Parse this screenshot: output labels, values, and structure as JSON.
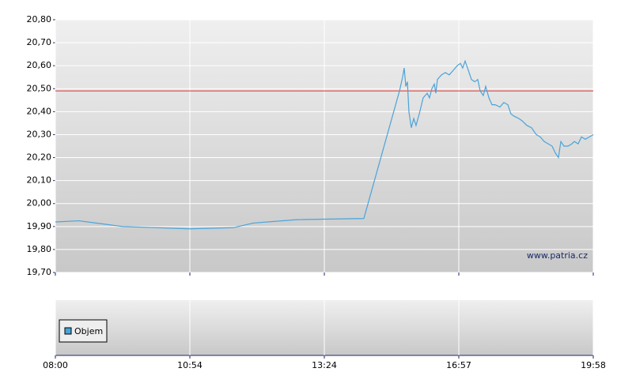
{
  "chart_data": {
    "type": "line",
    "xlim": [
      0,
      4
    ],
    "xticks": [
      {
        "value": 0,
        "label": "08:00"
      },
      {
        "value": 1,
        "label": "10:54"
      },
      {
        "value": 2,
        "label": "13:24"
      },
      {
        "value": 3,
        "label": "16:57"
      },
      {
        "value": 4,
        "label": "19:58"
      }
    ],
    "ylim": [
      19.7,
      20.8
    ],
    "yticks": [
      {
        "value": 19.7,
        "label": "19,70"
      },
      {
        "value": 19.8,
        "label": "19,80"
      },
      {
        "value": 19.9,
        "label": "19,90"
      },
      {
        "value": 20.0,
        "label": "20,00"
      },
      {
        "value": 20.1,
        "label": "20,10"
      },
      {
        "value": 20.2,
        "label": "20,20"
      },
      {
        "value": 20.3,
        "label": "20,30"
      },
      {
        "value": 20.4,
        "label": "20,40"
      },
      {
        "value": 20.5,
        "label": "20,50"
      },
      {
        "value": 20.6,
        "label": "20,60"
      },
      {
        "value": 20.7,
        "label": "20,70"
      },
      {
        "value": 20.8,
        "label": "20,80"
      }
    ],
    "grid": true,
    "reference_line": {
      "value": 20.49,
      "color": "#e03030"
    },
    "watermark": "www.patria.cz",
    "x": [
      0,
      0.176,
      0.5,
      1,
      1.324,
      1.471,
      1.794,
      2.294,
      2.559,
      2.582,
      2.594,
      2.606,
      2.618,
      2.629,
      2.647,
      2.665,
      2.682,
      2.706,
      2.735,
      2.765,
      2.782,
      2.8,
      2.818,
      2.829,
      2.841,
      2.871,
      2.9,
      2.929,
      2.959,
      2.988,
      3.012,
      3.029,
      3.047,
      3.071,
      3.094,
      3.118,
      3.141,
      3.159,
      3.182,
      3.2,
      3.224,
      3.247,
      3.271,
      3.306,
      3.335,
      3.365,
      3.388,
      3.412,
      3.447,
      3.471,
      3.506,
      3.541,
      3.576,
      3.606,
      3.635,
      3.665,
      3.694,
      3.718,
      3.741,
      3.759,
      3.782,
      3.812,
      3.841,
      3.859,
      3.888,
      3.912,
      3.941,
      3.971,
      4
    ],
    "series": [
      {
        "color": "#4aa3d8",
        "values": [
          19.92,
          19.925,
          19.9,
          19.89,
          19.895,
          19.915,
          19.93,
          19.935,
          20.49,
          20.55,
          20.59,
          20.51,
          20.53,
          20.4,
          20.33,
          20.37,
          20.34,
          20.39,
          20.46,
          20.48,
          20.46,
          20.5,
          20.52,
          20.48,
          20.54,
          20.56,
          20.57,
          20.56,
          20.58,
          20.6,
          20.61,
          20.59,
          20.62,
          20.58,
          20.54,
          20.53,
          20.54,
          20.49,
          20.47,
          20.51,
          20.46,
          20.43,
          20.43,
          20.42,
          20.44,
          20.43,
          20.39,
          20.38,
          20.37,
          20.36,
          20.34,
          20.33,
          20.3,
          20.29,
          20.27,
          20.26,
          20.25,
          20.22,
          20.2,
          20.27,
          20.25,
          20.25,
          20.26,
          20.27,
          20.26,
          20.29,
          20.28,
          20.29,
          20.3
        ]
      }
    ],
    "volume": {
      "name": "Objem",
      "color": "#4aa3d8"
    }
  }
}
